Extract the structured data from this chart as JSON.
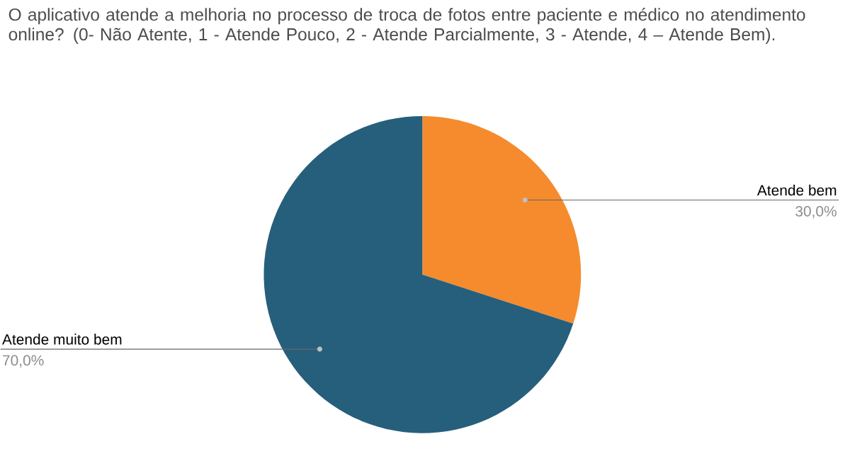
{
  "chart_data": {
    "type": "pie",
    "title": "O aplicativo atende a melhoria no processo de troca de fotos entre paciente e médico no atendimento online? (0- Não Atente, 1 - Atende Pouco, 2 - Atende Parcialmente, 3 - Atende, 4 – Atende Bem).",
    "categories": [
      "Atende bem",
      "Atende muito bem"
    ],
    "values": [
      30,
      70
    ],
    "colors": [
      "#f58b2d",
      "#265f7c"
    ],
    "value_labels": [
      "30,0%",
      "70,0%"
    ],
    "legend": false
  }
}
